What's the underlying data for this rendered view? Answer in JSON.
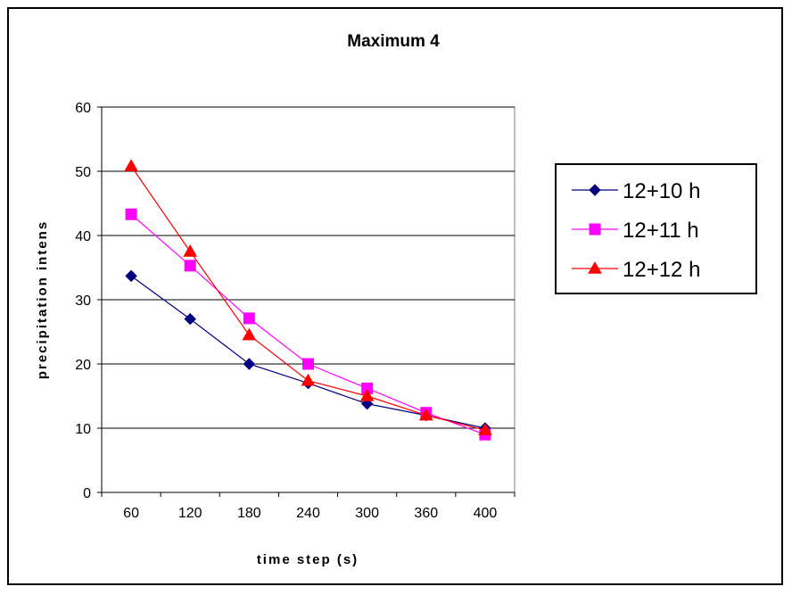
{
  "chart_data": {
    "type": "line",
    "title": "Maximum 4",
    "xlabel": "time step (s)",
    "ylabel": "precipitation intens",
    "categories": [
      "60",
      "120",
      "180",
      "240",
      "300",
      "360",
      "400"
    ],
    "ylim": [
      0,
      60
    ],
    "yticks": [
      0,
      10,
      20,
      30,
      40,
      50,
      60
    ],
    "grid": "horizontal",
    "legend_position": "right",
    "series": [
      {
        "name": "12+10 h",
        "color": "#000080",
        "marker": "diamond",
        "values": [
          33.7,
          27,
          20,
          17,
          13.8,
          12,
          10
        ]
      },
      {
        "name": "12+11 h",
        "color": "#ff00ff",
        "marker": "square",
        "values": [
          43.3,
          35.3,
          27.1,
          20,
          16.2,
          12.4,
          9
        ]
      },
      {
        "name": "12+12 h",
        "color": "#ff0000",
        "marker": "triangle",
        "values": [
          50.8,
          37.5,
          24.5,
          17.4,
          15,
          12,
          9.7
        ]
      }
    ]
  }
}
